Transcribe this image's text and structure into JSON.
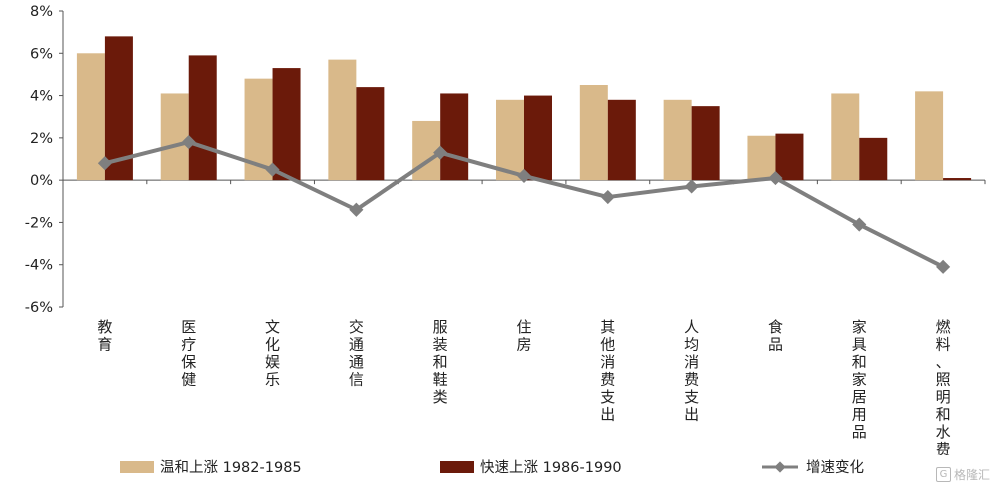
{
  "chart_data": {
    "type": "bar",
    "categories": [
      [
        "教",
        "育"
      ],
      [
        "医",
        "疗",
        "保",
        "健"
      ],
      [
        "文",
        "化",
        "娱",
        "乐"
      ],
      [
        "交",
        "通",
        "通",
        "信"
      ],
      [
        "服",
        "装",
        "和",
        "鞋",
        "类"
      ],
      [
        "住",
        "房"
      ],
      [
        "其",
        "他",
        "消",
        "费",
        "支",
        "出"
      ],
      [
        "人",
        "均",
        "消",
        "费",
        "支",
        "出"
      ],
      [
        "食",
        "品"
      ],
      [
        "家",
        "具",
        "和",
        "家",
        "居",
        "用",
        "品"
      ],
      [
        "燃",
        "料",
        "、",
        "照",
        "明",
        "和",
        "水",
        "费"
      ]
    ],
    "y_ticks": [
      "-6%",
      "-4%",
      "-2%",
      "0%",
      "2%",
      "4%",
      "6%",
      "8%"
    ],
    "y_tick_values": [
      -6,
      -4,
      -2,
      0,
      2,
      4,
      6,
      8
    ],
    "ylim": [
      -6,
      8
    ],
    "series": [
      {
        "name": "温和上涨 1982-1985",
        "kind": "bar",
        "color": "#d9b98a",
        "values": [
          6.0,
          4.1,
          4.8,
          5.7,
          2.8,
          3.8,
          4.5,
          3.8,
          2.1,
          4.1,
          4.2
        ]
      },
      {
        "name": "快速上涨 1986-1990",
        "kind": "bar",
        "color": "#6b1a0a",
        "values": [
          6.8,
          5.9,
          5.3,
          4.4,
          4.1,
          4.0,
          3.8,
          3.5,
          2.2,
          2.0,
          0.1
        ]
      },
      {
        "name": "增速变化",
        "kind": "line",
        "color": "#7f7f7f",
        "values": [
          0.8,
          1.8,
          0.5,
          -1.4,
          1.3,
          0.2,
          -0.8,
          -0.3,
          0.1,
          -2.1,
          -4.1
        ]
      }
    ],
    "legend_position": "bottom",
    "grid": false
  },
  "watermark": {
    "text": "格隆汇",
    "glyph": "G"
  }
}
